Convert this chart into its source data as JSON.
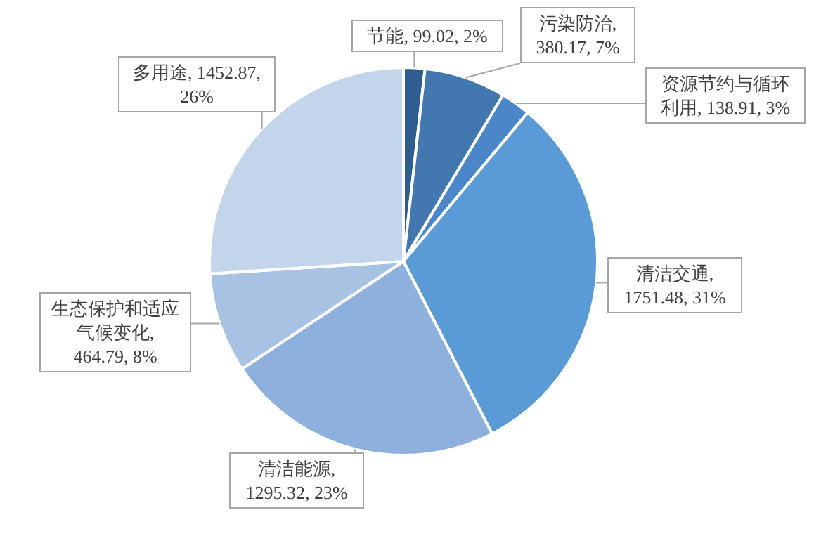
{
  "chart_data": {
    "type": "pie",
    "categories": [
      "节能",
      "污染防治",
      "资源节约与循环利用",
      "清洁交通",
      "清洁能源",
      "生态保护和适应气候变化",
      "多用途"
    ],
    "values": [
      99.02,
      380.17,
      138.91,
      1751.48,
      1295.32,
      464.79,
      1452.87
    ],
    "value_labels": [
      ", 99.02, 2%",
      ", 380.17, 7%",
      ", 138.91, 3%",
      ", 1751.48, 31%",
      ", 1295.32, 23%",
      ", 464.79, 8%",
      ", 1452.87, 26%"
    ],
    "colors": [
      "#2f5d8f",
      "#4277b0",
      "#4a86c8",
      "#5b9bd5",
      "#8eb0dd",
      "#a8c2e4",
      "#c3d5ea"
    ]
  }
}
